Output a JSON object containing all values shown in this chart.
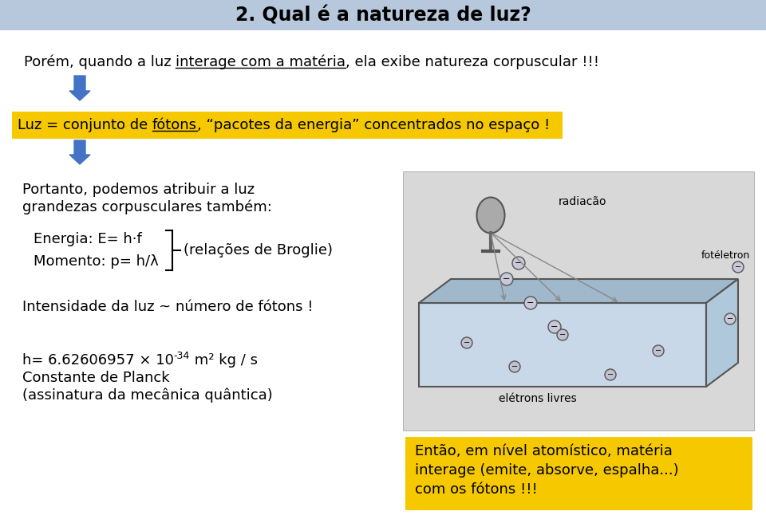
{
  "title": "2. Qual é a natureza de luz?",
  "title_bg": "#b8c8dc",
  "bg_color": "#ffffff",
  "line1_part1": "Porém, quando a luz ",
  "line1_underline": "interage com a matéria",
  "line1_part2": ", ela exibe natureza corpuscular !!!",
  "yellow_bg": "#f5c800",
  "yellow_text": "Luz = conjunto de ",
  "yellow_underline": "fótons",
  "yellow_rest": ", “pacotes da energia” concentrados no espaço !",
  "arrow_color": "#4472c4",
  "para1_line1": "Portanto, podemos atribuir a luz",
  "para1_line2": "grandezas corpusculares também:",
  "energia": "Energia: E= h·f",
  "momento": "Momento: p= h/λ",
  "broglie": "(relações de Broglie)",
  "intensidade": "Intensidade da luz ~ número de fótons !",
  "h_base": "h= 6.62606957 × 10",
  "h_exp": "-34",
  "h_units": " m² kg / s",
  "h_line2": "Constante de Planck",
  "h_line3": "(assinatura da mecânica quântica)",
  "yellow2_line1": "Então, em nível atomístico, matéria",
  "yellow2_line2": "interage (emite, absorve, espalha...)",
  "yellow2_line3": "com os fótons !!!",
  "font_size_title": 17,
  "font_size_body": 13,
  "font_size_small": 9
}
